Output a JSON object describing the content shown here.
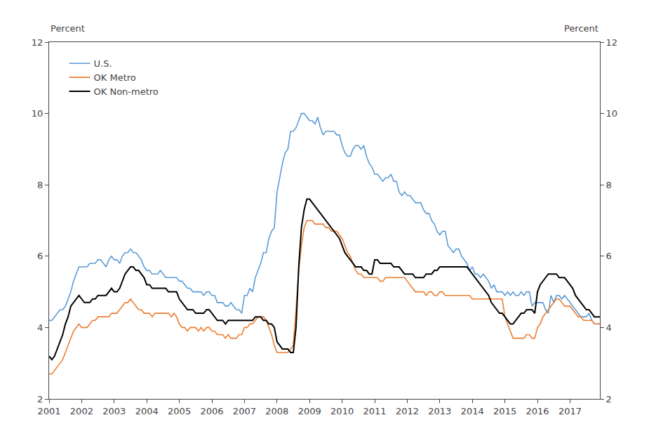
{
  "chart_data": {
    "type": "line",
    "ylabel": "Percent",
    "y2label": "Percent",
    "x": [
      2001,
      2001.0833,
      2001.1667,
      2001.25,
      2001.3333,
      2001.4167,
      2001.5,
      2001.5833,
      2001.6667,
      2001.75,
      2001.8333,
      2001.9167,
      2002,
      2002.0833,
      2002.1667,
      2002.25,
      2002.3333,
      2002.4167,
      2002.5,
      2002.5833,
      2002.6667,
      2002.75,
      2002.8333,
      2002.9167,
      2003,
      2003.0833,
      2003.1667,
      2003.25,
      2003.3333,
      2003.4167,
      2003.5,
      2003.5833,
      2003.6667,
      2003.75,
      2003.8333,
      2003.9167,
      2004,
      2004.0833,
      2004.1667,
      2004.25,
      2004.3333,
      2004.4167,
      2004.5,
      2004.5833,
      2004.6667,
      2004.75,
      2004.8333,
      2004.9167,
      2005,
      2005.0833,
      2005.1667,
      2005.25,
      2005.3333,
      2005.4167,
      2005.5,
      2005.5833,
      2005.6667,
      2005.75,
      2005.8333,
      2005.9167,
      2006,
      2006.0833,
      2006.1667,
      2006.25,
      2006.3333,
      2006.4167,
      2006.5,
      2006.5833,
      2006.6667,
      2006.75,
      2006.8333,
      2006.9167,
      2007,
      2007.0833,
      2007.1667,
      2007.25,
      2007.3333,
      2007.4167,
      2007.5,
      2007.5833,
      2007.6667,
      2007.75,
      2007.8333,
      2007.9167,
      2008,
      2008.0833,
      2008.1667,
      2008.25,
      2008.3333,
      2008.4167,
      2008.5,
      2008.5833,
      2008.6667,
      2008.75,
      2008.8333,
      2008.9167,
      2009,
      2009.0833,
      2009.1667,
      2009.25,
      2009.3333,
      2009.4167,
      2009.5,
      2009.5833,
      2009.6667,
      2009.75,
      2009.8333,
      2009.9167,
      2010,
      2010.0833,
      2010.1667,
      2010.25,
      2010.3333,
      2010.4167,
      2010.5,
      2010.5833,
      2010.6667,
      2010.75,
      2010.8333,
      2010.9167,
      2011,
      2011.0833,
      2011.1667,
      2011.25,
      2011.3333,
      2011.4167,
      2011.5,
      2011.5833,
      2011.6667,
      2011.75,
      2011.8333,
      2011.9167,
      2012,
      2012.0833,
      2012.1667,
      2012.25,
      2012.3333,
      2012.4167,
      2012.5,
      2012.5833,
      2012.6667,
      2012.75,
      2012.8333,
      2012.9167,
      2013,
      2013.0833,
      2013.1667,
      2013.25,
      2013.3333,
      2013.4167,
      2013.5,
      2013.5833,
      2013.6667,
      2013.75,
      2013.8333,
      2013.9167,
      2014,
      2014.0833,
      2014.1667,
      2014.25,
      2014.3333,
      2014.4167,
      2014.5,
      2014.5833,
      2014.6667,
      2014.75,
      2014.8333,
      2014.9167,
      2015,
      2015.0833,
      2015.1667,
      2015.25,
      2015.3333,
      2015.4167,
      2015.5,
      2015.5833,
      2015.6667,
      2015.75,
      2015.8333,
      2015.9167,
      2016,
      2016.0833,
      2016.1667,
      2016.25,
      2016.3333,
      2016.4167,
      2016.5,
      2016.5833,
      2016.6667,
      2016.75,
      2016.8333,
      2016.9167,
      2017,
      2017.0833,
      2017.1667,
      2017.25,
      2017.3333,
      2017.4167,
      2017.5,
      2017.5833,
      2017.6667,
      2017.75,
      2017.8333,
      2017.9167
    ],
    "series": [
      {
        "name": "U.S.",
        "color": "#5B9BD5",
        "values": [
          4.2,
          4.2,
          4.3,
          4.4,
          4.5,
          4.5,
          4.6,
          4.8,
          5.0,
          5.3,
          5.5,
          5.7,
          5.7,
          5.7,
          5.7,
          5.8,
          5.8,
          5.8,
          5.9,
          5.9,
          5.8,
          5.7,
          5.9,
          6.0,
          5.9,
          5.9,
          5.8,
          6.0,
          6.1,
          6.1,
          6.2,
          6.1,
          6.1,
          6.0,
          5.9,
          5.7,
          5.6,
          5.6,
          5.5,
          5.5,
          5.5,
          5.6,
          5.5,
          5.4,
          5.4,
          5.4,
          5.4,
          5.4,
          5.3,
          5.3,
          5.2,
          5.1,
          5.1,
          5.0,
          5.0,
          5.0,
          5.0,
          4.9,
          5.0,
          5.0,
          4.9,
          4.9,
          4.7,
          4.7,
          4.7,
          4.6,
          4.6,
          4.7,
          4.6,
          4.5,
          4.5,
          4.4,
          4.9,
          4.9,
          5.1,
          5.0,
          5.4,
          5.6,
          5.8,
          6.1,
          6.1,
          6.5,
          6.7,
          6.8,
          7.8,
          8.2,
          8.6,
          8.9,
          9.0,
          9.5,
          9.5,
          9.6,
          9.8,
          10.0,
          10.0,
          9.9,
          9.8,
          9.8,
          9.7,
          9.9,
          9.6,
          9.4,
          9.5,
          9.5,
          9.5,
          9.5,
          9.4,
          9.4,
          9.1,
          8.9,
          8.8,
          8.8,
          9.0,
          9.1,
          9.1,
          9.0,
          9.1,
          8.8,
          8.6,
          8.5,
          8.3,
          8.3,
          8.2,
          8.1,
          8.2,
          8.2,
          8.3,
          8.1,
          8.1,
          7.8,
          7.7,
          7.8,
          7.7,
          7.7,
          7.6,
          7.5,
          7.5,
          7.5,
          7.3,
          7.2,
          7.2,
          7.0,
          6.9,
          6.7,
          6.6,
          6.7,
          6.7,
          6.3,
          6.2,
          6.1,
          6.2,
          6.2,
          6.0,
          5.9,
          5.8,
          5.6,
          5.7,
          5.5,
          5.5,
          5.4,
          5.5,
          5.4,
          5.3,
          5.1,
          5.2,
          5.0,
          5.0,
          5.0,
          4.9,
          5.0,
          4.9,
          5.0,
          4.9,
          4.9,
          5.0,
          4.9,
          5.0,
          5.0,
          4.6,
          4.7,
          4.7,
          4.7,
          4.7,
          4.5,
          4.4,
          4.9,
          4.7,
          4.9,
          4.9,
          4.8,
          4.9,
          4.8,
          4.7,
          4.6,
          4.5,
          4.4,
          4.3,
          4.3,
          4.3,
          4.4,
          4.2,
          4.1,
          4.1,
          4.1
        ]
      },
      {
        "name": "OK Metro",
        "color": "#ED7D31",
        "values": [
          2.7,
          2.7,
          2.8,
          2.9,
          3.0,
          3.1,
          3.3,
          3.5,
          3.7,
          3.9,
          4.0,
          4.1,
          4.0,
          4.0,
          4.0,
          4.1,
          4.2,
          4.2,
          4.3,
          4.3,
          4.3,
          4.3,
          4.3,
          4.4,
          4.4,
          4.4,
          4.5,
          4.6,
          4.7,
          4.7,
          4.8,
          4.7,
          4.6,
          4.5,
          4.5,
          4.4,
          4.4,
          4.4,
          4.3,
          4.4,
          4.4,
          4.4,
          4.4,
          4.4,
          4.4,
          4.3,
          4.4,
          4.3,
          4.1,
          4.0,
          4.0,
          3.9,
          4.0,
          4.0,
          4.0,
          3.9,
          4.0,
          3.9,
          4.0,
          4.0,
          3.9,
          3.9,
          3.8,
          3.8,
          3.8,
          3.7,
          3.8,
          3.7,
          3.7,
          3.7,
          3.8,
          3.8,
          4.0,
          4.0,
          4.1,
          4.1,
          4.2,
          4.3,
          4.3,
          4.3,
          4.2,
          4.0,
          3.8,
          3.5,
          3.3,
          3.3,
          3.3,
          3.3,
          3.3,
          3.4,
          3.5,
          4.5,
          5.6,
          6.3,
          6.8,
          7.0,
          7.0,
          7.0,
          6.9,
          6.9,
          6.9,
          6.9,
          6.8,
          6.8,
          6.7,
          6.7,
          6.7,
          6.6,
          6.5,
          6.3,
          6.1,
          6.0,
          5.8,
          5.6,
          5.5,
          5.5,
          5.4,
          5.4,
          5.4,
          5.4,
          5.4,
          5.4,
          5.3,
          5.3,
          5.4,
          5.4,
          5.4,
          5.4,
          5.4,
          5.4,
          5.4,
          5.4,
          5.3,
          5.2,
          5.1,
          5.0,
          5.0,
          5.0,
          5.0,
          4.9,
          5.0,
          5.0,
          4.9,
          4.9,
          5.0,
          5.0,
          4.9,
          4.9,
          4.9,
          4.9,
          4.9,
          4.9,
          4.9,
          4.9,
          4.9,
          4.9,
          4.8,
          4.8,
          4.8,
          4.8,
          4.8,
          4.8,
          4.8,
          4.8,
          4.8,
          4.8,
          4.8,
          4.8,
          4.3,
          4.1,
          3.9,
          3.7,
          3.7,
          3.7,
          3.7,
          3.7,
          3.8,
          3.8,
          3.7,
          3.7,
          4.0,
          4.1,
          4.3,
          4.4,
          4.5,
          4.6,
          4.7,
          4.8,
          4.8,
          4.7,
          4.6,
          4.6,
          4.6,
          4.5,
          4.4,
          4.3,
          4.3,
          4.2,
          4.2,
          4.2,
          4.2,
          4.1,
          4.1,
          4.1
        ]
      },
      {
        "name": "OK Non-metro",
        "color": "#000000",
        "values": [
          3.2,
          3.1,
          3.2,
          3.4,
          3.6,
          3.8,
          4.1,
          4.3,
          4.6,
          4.7,
          4.8,
          4.9,
          4.8,
          4.7,
          4.7,
          4.7,
          4.8,
          4.8,
          4.9,
          4.9,
          4.9,
          4.9,
          5.0,
          5.1,
          5.0,
          5.0,
          5.1,
          5.3,
          5.5,
          5.6,
          5.7,
          5.7,
          5.6,
          5.6,
          5.5,
          5.4,
          5.2,
          5.2,
          5.1,
          5.1,
          5.1,
          5.1,
          5.1,
          5.1,
          5.0,
          5.0,
          5.0,
          5.0,
          4.8,
          4.7,
          4.6,
          4.5,
          4.5,
          4.5,
          4.4,
          4.4,
          4.4,
          4.4,
          4.5,
          4.5,
          4.4,
          4.3,
          4.2,
          4.2,
          4.2,
          4.1,
          4.2,
          4.2,
          4.2,
          4.2,
          4.2,
          4.2,
          4.2,
          4.2,
          4.2,
          4.2,
          4.3,
          4.3,
          4.3,
          4.2,
          4.2,
          4.1,
          4.1,
          4.0,
          3.6,
          3.5,
          3.4,
          3.4,
          3.4,
          3.3,
          3.3,
          4.0,
          5.7,
          6.8,
          7.3,
          7.6,
          7.6,
          7.5,
          7.4,
          7.3,
          7.2,
          7.1,
          7.0,
          6.9,
          6.8,
          6.7,
          6.6,
          6.5,
          6.3,
          6.1,
          6.0,
          5.9,
          5.8,
          5.7,
          5.7,
          5.7,
          5.6,
          5.6,
          5.5,
          5.5,
          5.9,
          5.9,
          5.8,
          5.8,
          5.8,
          5.8,
          5.8,
          5.7,
          5.7,
          5.7,
          5.6,
          5.5,
          5.5,
          5.5,
          5.5,
          5.4,
          5.4,
          5.4,
          5.4,
          5.5,
          5.5,
          5.5,
          5.6,
          5.6,
          5.7,
          5.7,
          5.7,
          5.7,
          5.7,
          5.7,
          5.7,
          5.7,
          5.7,
          5.7,
          5.7,
          5.6,
          5.5,
          5.4,
          5.3,
          5.2,
          5.1,
          5.0,
          4.9,
          4.7,
          4.6,
          4.5,
          4.4,
          4.4,
          4.3,
          4.2,
          4.1,
          4.1,
          4.2,
          4.3,
          4.4,
          4.4,
          4.5,
          4.5,
          4.5,
          4.4,
          5.0,
          5.2,
          5.3,
          5.4,
          5.5,
          5.5,
          5.5,
          5.5,
          5.4,
          5.4,
          5.4,
          5.3,
          5.2,
          5.1,
          4.9,
          4.8,
          4.7,
          4.6,
          4.5,
          4.5,
          4.4,
          4.3,
          4.3,
          4.3
        ]
      }
    ],
    "xlim": [
      2001,
      2017.917
    ],
    "xticks": [
      2001,
      2002,
      2003,
      2004,
      2005,
      2006,
      2007,
      2008,
      2009,
      2010,
      2011,
      2012,
      2013,
      2014,
      2015,
      2016,
      2017
    ],
    "ylim": [
      2,
      12
    ],
    "yticks": [
      2,
      4,
      6,
      8,
      10,
      12
    ],
    "y2lim": [
      2,
      12
    ],
    "y2ticks": [
      2,
      4,
      6,
      8,
      10,
      12
    ],
    "grid": false,
    "legend": "upper left"
  }
}
